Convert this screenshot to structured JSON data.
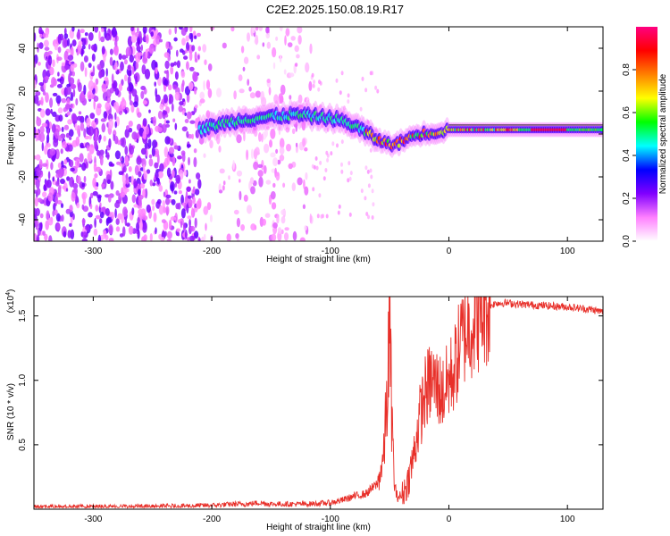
{
  "title": "C2E2.2025.150.08.19.R17",
  "chart_data": [
    {
      "type": "heatmap",
      "xlabel": "Height of straight line (km)",
      "ylabel": "Frequency (Hz)",
      "xlim": [
        -350,
        130
      ],
      "ylim": [
        -50,
        50
      ],
      "xticks": [
        -300,
        -200,
        -100,
        0,
        100
      ],
      "yticks": [
        -40,
        -20,
        0,
        20,
        40
      ],
      "colorbar": {
        "label": "Normalized spectral amplitude",
        "range": [
          0,
          1
        ],
        "ticks": [
          "0.0",
          "0.2",
          "0.4",
          "0.6",
          "0.8"
        ],
        "colors": [
          "#ffffff",
          "#ff80ff",
          "#8000ff",
          "#0000ff",
          "#00ffff",
          "#00ff00",
          "#ffff00",
          "#ff8000",
          "#ff0000",
          "#ff0080"
        ]
      },
      "noise_region": {
        "x_range": [
          -350,
          -115
        ],
        "amplitude_range": [
          0.05,
          0.25
        ]
      },
      "signal_ridge": [
        {
          "x": -210,
          "y": 2
        },
        {
          "x": -190,
          "y": 5
        },
        {
          "x": -170,
          "y": 7
        },
        {
          "x": -150,
          "y": 8
        },
        {
          "x": -130,
          "y": 9
        },
        {
          "x": -110,
          "y": 8
        },
        {
          "x": -95,
          "y": 7
        },
        {
          "x": -80,
          "y": 4
        },
        {
          "x": -65,
          "y": -1
        },
        {
          "x": -55,
          "y": -4
        },
        {
          "x": -45,
          "y": -5
        },
        {
          "x": -35,
          "y": -2
        },
        {
          "x": -25,
          "y": 0
        },
        {
          "x": -10,
          "y": 1
        },
        {
          "x": 0,
          "y": 2
        },
        {
          "x": 25,
          "y": 2
        },
        {
          "x": 50,
          "y": 2
        },
        {
          "x": 75,
          "y": 2
        },
        {
          "x": 100,
          "y": 2
        },
        {
          "x": 130,
          "y": 2
        }
      ]
    },
    {
      "type": "line",
      "xlabel": "Height of straight line (km)",
      "ylabel": "SNR (10 * v/v)",
      "y_multiplier_label": "(x10",
      "y_multiplier_exp": "4",
      "xlim": [
        -350,
        130
      ],
      "ylim": [
        0,
        1.65
      ],
      "xticks": [
        -300,
        -200,
        -100,
        0,
        100
      ],
      "yticks": [
        "0.5",
        "1.0",
        "1.5"
      ],
      "color": "#e8302a",
      "series": [
        {
          "x": [
            -350,
            -300,
            -250,
            -200,
            -180,
            -170,
            -160,
            -150,
            -140,
            -120,
            -100,
            -90,
            -80,
            -70,
            -60,
            -55,
            -52,
            -50,
            -48,
            -46,
            -44,
            -40,
            -35,
            -30,
            -25,
            -20,
            -15,
            -10,
            -5,
            0,
            5,
            10,
            15,
            20,
            25,
            30,
            35,
            40,
            50,
            60,
            80,
            100,
            120,
            130
          ],
          "y": [
            0.02,
            0.02,
            0.02,
            0.03,
            0.04,
            0.04,
            0.05,
            0.04,
            0.04,
            0.04,
            0.05,
            0.07,
            0.1,
            0.12,
            0.2,
            0.4,
            0.9,
            1.4,
            0.7,
            0.2,
            0.1,
            0.1,
            0.2,
            0.4,
            0.7,
            0.9,
            1.0,
            0.95,
            0.9,
            1.0,
            1.1,
            1.3,
            1.4,
            1.45,
            1.5,
            1.55,
            1.58,
            1.6,
            1.6,
            1.59,
            1.58,
            1.57,
            1.55,
            1.53
          ]
        }
      ]
    }
  ]
}
